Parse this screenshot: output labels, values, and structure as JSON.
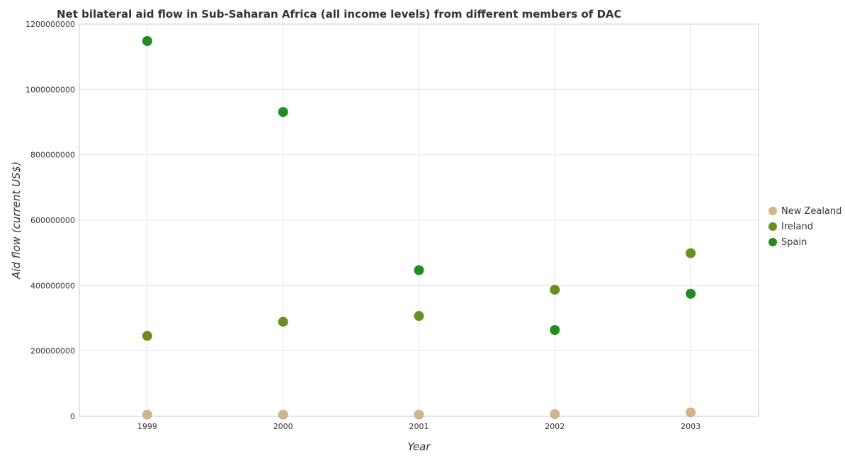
{
  "chart_data": {
    "type": "scatter",
    "title": "Net bilateral aid flow in Sub-Saharan Africa (all income levels) from different members of DAC",
    "xlabel": "Year",
    "ylabel": "Aid flow (current US$)",
    "categories": [
      "1999",
      "2000",
      "2001",
      "2002",
      "2003"
    ],
    "ylim": [
      0,
      1200000000
    ],
    "yticks": [
      0,
      200000000,
      400000000,
      600000000,
      800000000,
      1000000000,
      1200000000
    ],
    "ytick_labels": [
      "0",
      "200000000",
      "400000000",
      "600000000",
      "800000000",
      "1000000000",
      "1200000000"
    ],
    "grid": true,
    "legend_position": "right",
    "series": [
      {
        "name": "New Zealand",
        "color": "#d2b48c",
        "values": [
          5000000,
          5000000,
          5000000,
          6500000,
          12000000
        ]
      },
      {
        "name": "Ireland",
        "color": "#6b8e23",
        "values": [
          246000000,
          289000000,
          307000000,
          387000000,
          499000000
        ]
      },
      {
        "name": "Spain",
        "color": "#228b22",
        "values": [
          1148000000,
          931000000,
          447000000,
          264000000,
          375000000
        ]
      }
    ]
  }
}
